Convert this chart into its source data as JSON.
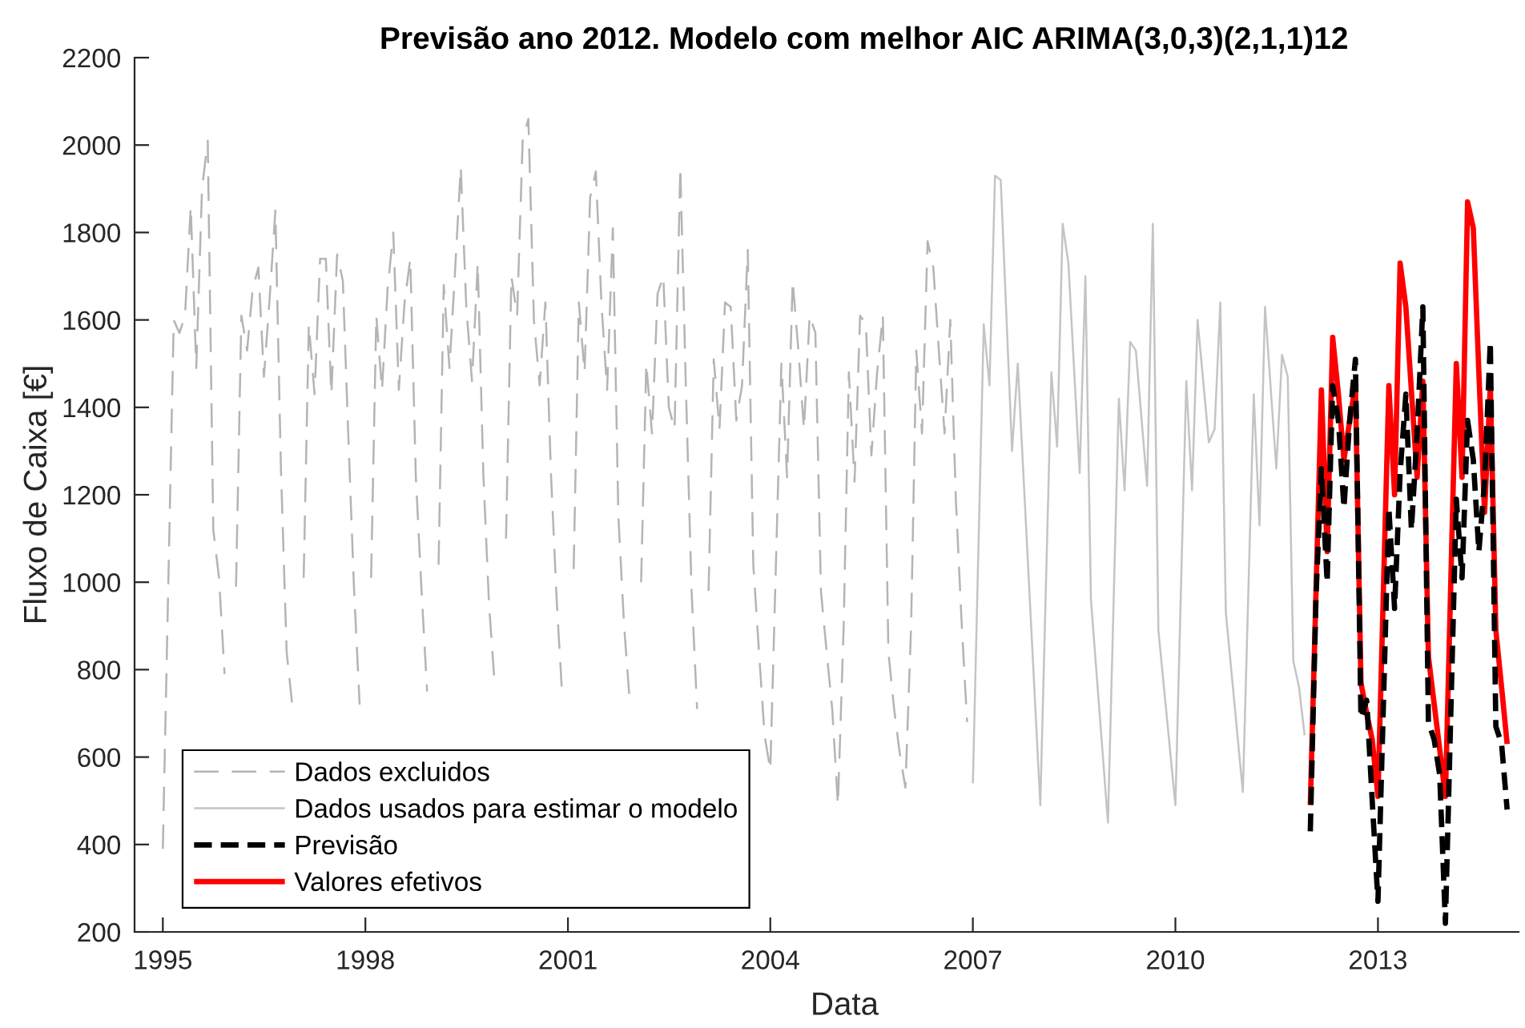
{
  "chart_data": {
    "type": "line",
    "title": "Previsão ano 2012. Modelo com melhor AIC ARIMA(3,0,3)(2,1,1)12",
    "xlabel": "Data",
    "ylabel": "Fluxo de Caixa [€]",
    "xlim": [
      "1994-08",
      "2015-02"
    ],
    "xticks": [
      "1995",
      "1998",
      "2001",
      "2004",
      "2007",
      "2010",
      "2013"
    ],
    "ylim": [
      200,
      2200
    ],
    "yticks": [
      200,
      400,
      600,
      800,
      1000,
      1200,
      1400,
      1600,
      1800,
      2000,
      2200
    ],
    "legend": "bottom left",
    "series": [
      {
        "name": "Dados excluidos",
        "color": "#b4b4b4",
        "line_style": "dashed",
        "x": [
          "1995-01",
          "1995-03",
          "1995-04",
          "1995-05",
          "1995-06",
          "1995-07",
          "1995-08",
          "1995-09",
          "1995-10",
          "1995-11",
          "1995-12",
          "1996-01",
          "1996-02",
          "1996-03",
          "1996-04",
          "1996-05",
          "1996-06",
          "1996-07",
          "1996-08",
          "1996-09",
          "1996-10",
          "1996-11",
          "1996-12",
          "1997-01",
          "1997-02",
          "1997-03",
          "1997-04",
          "1997-05",
          "1997-06",
          "1997-07",
          "1997-08",
          "1997-09",
          "1997-10",
          "1997-11",
          "1997-12",
          "1998-01",
          "1998-02",
          "1998-03",
          "1998-04",
          "1998-05",
          "1998-06",
          "1998-07",
          "1998-08",
          "1998-09",
          "1998-10",
          "1998-11",
          "1998-12",
          "1999-01",
          "1999-02",
          "1999-03",
          "1999-04",
          "1999-05",
          "1999-06",
          "1999-07",
          "1999-08",
          "1999-09",
          "1999-10",
          "1999-11",
          "1999-12",
          "2000-01",
          "2000-02",
          "2000-03",
          "2000-04",
          "2000-05",
          "2000-06",
          "2000-07",
          "2000-08",
          "2000-09",
          "2000-10",
          "2000-11",
          "2000-12",
          "2001-01",
          "2001-02",
          "2001-03",
          "2001-04",
          "2001-05",
          "2001-06",
          "2001-07",
          "2001-08",
          "2001-09",
          "2001-10",
          "2001-11",
          "2001-12",
          "2002-01",
          "2002-02",
          "2002-03",
          "2002-04",
          "2002-05",
          "2002-06",
          "2002-07",
          "2002-08",
          "2002-09",
          "2002-10",
          "2002-11",
          "2002-12",
          "2003-01",
          "2003-02",
          "2003-03",
          "2003-04",
          "2003-05",
          "2003-06",
          "2003-07",
          "2003-08",
          "2003-09",
          "2003-10",
          "2003-11",
          "2003-12",
          "2004-01",
          "2004-02",
          "2004-03",
          "2004-04",
          "2004-05",
          "2004-06",
          "2004-07",
          "2004-08",
          "2004-09",
          "2004-10",
          "2004-11",
          "2004-12",
          "2005-01",
          "2005-02",
          "2005-03",
          "2005-04",
          "2005-05",
          "2005-06",
          "2005-07",
          "2005-08",
          "2005-09",
          "2005-10",
          "2005-11",
          "2005-12",
          "2006-01",
          "2006-02",
          "2006-03",
          "2006-04",
          "2006-05",
          "2006-06",
          "2006-07",
          "2006-08",
          "2006-09",
          "2006-10",
          "2006-11",
          "2006-12"
        ],
        "values": [
          390,
          1600,
          1570,
          1610,
          1860,
          1490,
          1900,
          2010,
          1120,
          1010,
          790,
          null,
          990,
          1610,
          1530,
          1670,
          1720,
          1470,
          1650,
          1850,
          1260,
          840,
          720,
          null,
          1010,
          1590,
          1430,
          1740,
          1740,
          1430,
          1750,
          1690,
          1330,
          980,
          720,
          null,
          1010,
          1610,
          1440,
          1670,
          1800,
          1440,
          1640,
          1740,
          1240,
          980,
          750,
          null,
          1040,
          1680,
          1490,
          1710,
          1950,
          1630,
          1460,
          1730,
          1250,
          950,
          770,
          null,
          1100,
          1700,
          1610,
          2010,
          2060,
          1600,
          1450,
          1640,
          1250,
          960,
          740,
          null,
          1030,
          1640,
          1480,
          1880,
          1940,
          1640,
          1440,
          1810,
          1150,
          900,
          730,
          null,
          1000,
          1500,
          1340,
          1660,
          1700,
          1400,
          1350,
          1950,
          1450,
          980,
          710,
          null,
          980,
          1510,
          1350,
          1640,
          1630,
          1370,
          1450,
          1760,
          1040,
          840,
          650,
          570,
          1050,
          1500,
          1240,
          1690,
          1530,
          1350,
          1610,
          1570,
          980,
          840,
          710,
          490,
          900,
          1480,
          1230,
          1610,
          1590,
          1290,
          1480,
          1610,
          840,
          710,
          610,
          530,
          900,
          1530,
          1340,
          1780,
          1720,
          1530,
          1340,
          1600,
          1190,
          910,
          680
        ]
      },
      {
        "name": "Dados usados para estimar o modelo",
        "color": "#c4c4c4",
        "line_style": "solid",
        "x": [
          "2007-01",
          "2007-03",
          "2007-04",
          "2007-05",
          "2007-06",
          "2007-08",
          "2007-09",
          "2008-01",
          "2008-03",
          "2008-04",
          "2008-05",
          "2008-06",
          "2008-08",
          "2008-09",
          "2008-10",
          "2009-01",
          "2009-03",
          "2009-04",
          "2009-05",
          "2009-06",
          "2009-08",
          "2009-09",
          "2009-10",
          "2010-01",
          "2010-03",
          "2010-04",
          "2010-05",
          "2010-07",
          "2010-08",
          "2010-09",
          "2010-10",
          "2011-01",
          "2011-03",
          "2011-04",
          "2011-05",
          "2011-07",
          "2011-08",
          "2011-09",
          "2011-10",
          "2011-11",
          "2011-12"
        ],
        "values": [
          540,
          1590,
          1450,
          1930,
          1920,
          1300,
          1500,
          490,
          1480,
          1310,
          1820,
          1730,
          1250,
          1700,
          960,
          450,
          1420,
          1210,
          1550,
          1530,
          1220,
          1820,
          890,
          490,
          1460,
          1210,
          1600,
          1320,
          1350,
          1640,
          930,
          520,
          1430,
          1130,
          1630,
          1260,
          1520,
          1470,
          820,
          760,
          650
        ]
      },
      {
        "name": "Previsão",
        "color": "#000000",
        "line_style": "dashed",
        "x": [
          "2012-01",
          "2012-02",
          "2012-03",
          "2012-04",
          "2012-05",
          "2012-06",
          "2012-07",
          "2012-08",
          "2012-09",
          "2012-10",
          "2012-11",
          "2012-12",
          "2013-01",
          "2013-03",
          "2013-04",
          "2013-05",
          "2013-06",
          "2013-07",
          "2013-08",
          "2013-09",
          "2013-10",
          "2013-11",
          "2013-12",
          "2014-01",
          "2014-03",
          "2014-04",
          "2014-05",
          "2014-06",
          "2014-07",
          "2014-08",
          "2014-09",
          "2014-10",
          "2014-11",
          "2014-12"
        ],
        "values": [
          430,
          970,
          1260,
          1000,
          1450,
          1370,
          1170,
          1370,
          1510,
          690,
          730,
          500,
          270,
          1170,
          940,
          1250,
          1430,
          1120,
          1340,
          1630,
          680,
          640,
          560,
          220,
          1190,
          1010,
          1370,
          1280,
          1070,
          1230,
          1550,
          670,
          630,
          480
        ]
      },
      {
        "name": "Valores efetivos",
        "color": "#ff0000",
        "line_style": "solid",
        "x": [
          "2012-01",
          "2012-03",
          "2012-04",
          "2012-05",
          "2012-06",
          "2012-07",
          "2012-08",
          "2012-09",
          "2012-10",
          "2012-11",
          "2012-12",
          "2013-01",
          "2013-03",
          "2013-04",
          "2013-05",
          "2013-06",
          "2013-08",
          "2013-09",
          "2013-10",
          "2014-01",
          "2014-03",
          "2014-04",
          "2014-05",
          "2014-06",
          "2014-07",
          "2014-08",
          "2014-09",
          "2014-10",
          "2014-11",
          "2014-12"
        ],
        "values": [
          490,
          1440,
          1070,
          1560,
          1430,
          1280,
          1370,
          1450,
          770,
          700,
          640,
          510,
          1450,
          1200,
          1730,
          1630,
          1240,
          1460,
          830,
          510,
          1500,
          1240,
          1870,
          1810,
          1480,
          1160,
          1450,
          890,
          760,
          630
        ]
      }
    ]
  }
}
